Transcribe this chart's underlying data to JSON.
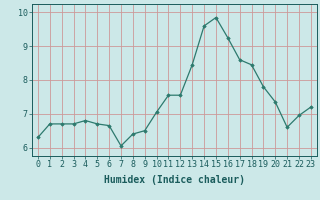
{
  "x": [
    0,
    1,
    2,
    3,
    4,
    5,
    6,
    7,
    8,
    9,
    10,
    11,
    12,
    13,
    14,
    15,
    16,
    17,
    18,
    19,
    20,
    21,
    22,
    23
  ],
  "y": [
    6.3,
    6.7,
    6.7,
    6.7,
    6.8,
    6.7,
    6.65,
    6.05,
    6.4,
    6.5,
    7.05,
    7.55,
    7.55,
    8.45,
    9.6,
    9.85,
    9.25,
    8.6,
    8.45,
    7.8,
    7.35,
    6.6,
    6.95,
    7.2
  ],
  "xlabel": "Humidex (Indice chaleur)",
  "xlim": [
    -0.5,
    23.5
  ],
  "ylim": [
    5.75,
    10.25
  ],
  "yticks": [
    6,
    7,
    8,
    9,
    10
  ],
  "xticks": [
    0,
    1,
    2,
    3,
    4,
    5,
    6,
    7,
    8,
    9,
    10,
    11,
    12,
    13,
    14,
    15,
    16,
    17,
    18,
    19,
    20,
    21,
    22,
    23
  ],
  "line_color": "#2d7a6e",
  "marker": "D",
  "marker_size": 1.8,
  "bg_color": "#cce8e8",
  "grid_color": "#cc9999",
  "axis_label_color": "#1a5c5c",
  "tick_color": "#1a5c5c",
  "xlabel_fontsize": 7,
  "tick_fontsize": 6
}
